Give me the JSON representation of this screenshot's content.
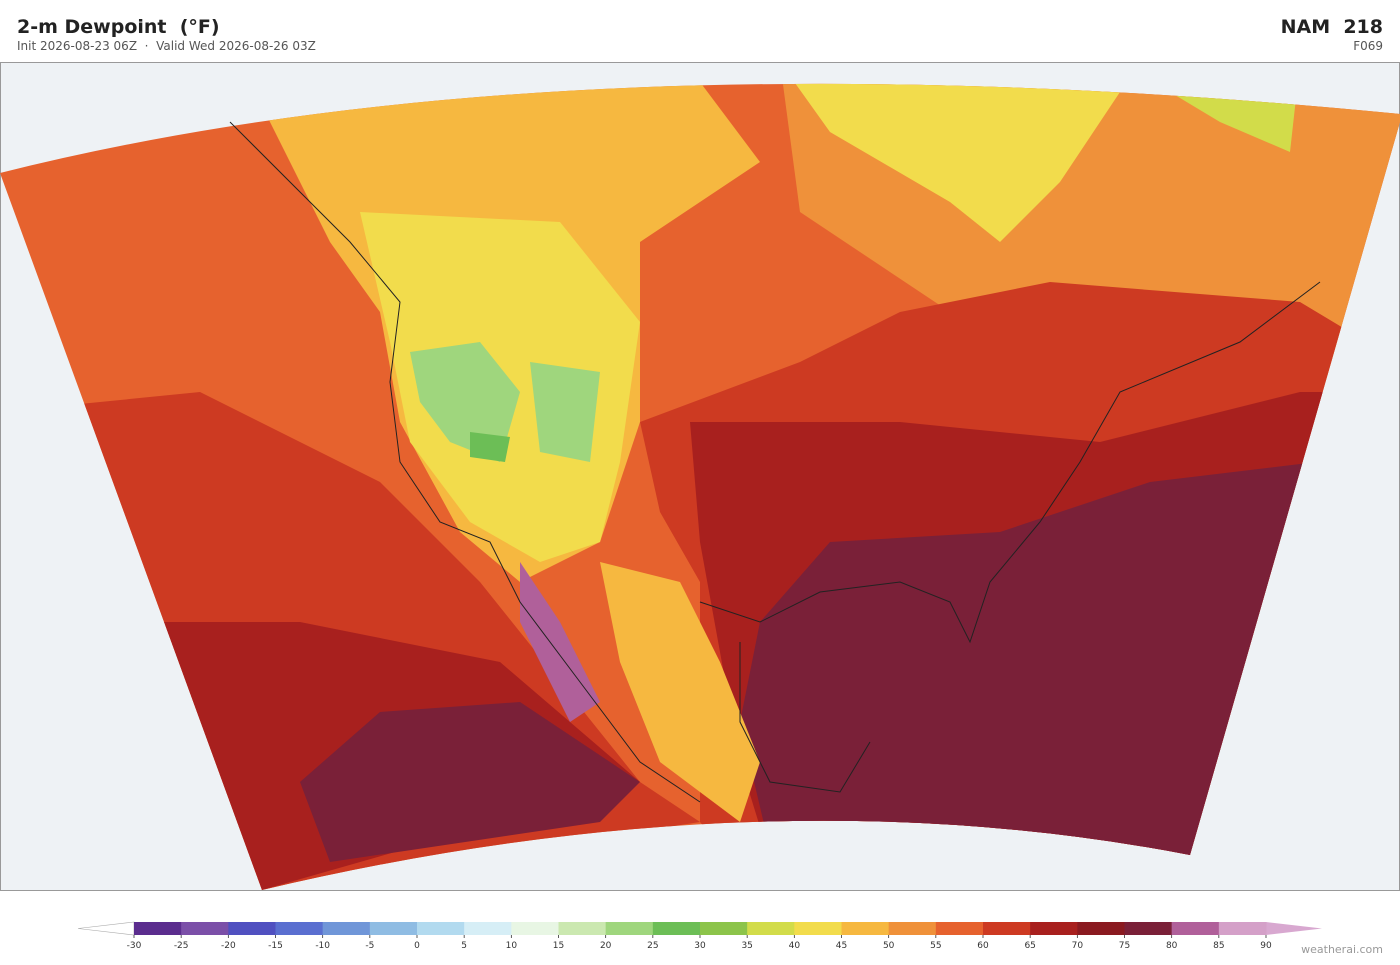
{
  "header": {
    "title": "2-m Dewpoint  (°F)",
    "subtitle": "Init 2026-08-23 06Z  ·  Valid Wed 2026-08-26 03Z",
    "model": "NAM  218",
    "forecast_hour": "F069"
  },
  "colorbar": {
    "ticks": [
      -30,
      -25,
      -20,
      -15,
      -10,
      -5,
      0,
      5,
      10,
      15,
      20,
      25,
      30,
      35,
      40,
      45,
      50,
      55,
      60,
      65,
      70,
      75,
      80,
      85,
      90
    ],
    "colors": [
      "#5b2d8e",
      "#7b4fa8",
      "#5050c0",
      "#5a6fd0",
      "#7096d8",
      "#8fbce3",
      "#b2daef",
      "#d6eef6",
      "#e8f6e4",
      "#cbe8b0",
      "#9fd67d",
      "#6cbe56",
      "#8cc44a",
      "#d2dc4a",
      "#f2dc4c",
      "#f6b840",
      "#ef913a",
      "#e6622e",
      "#cd3a22",
      "#a8201e",
      "#8a1a20",
      "#7a2038",
      "#b0609a",
      "#d4a0c8"
    ],
    "under_color": "#ffffff",
    "over_color": "#d8a8d0"
  },
  "footer": {
    "credit": "weatherai.com"
  }
}
